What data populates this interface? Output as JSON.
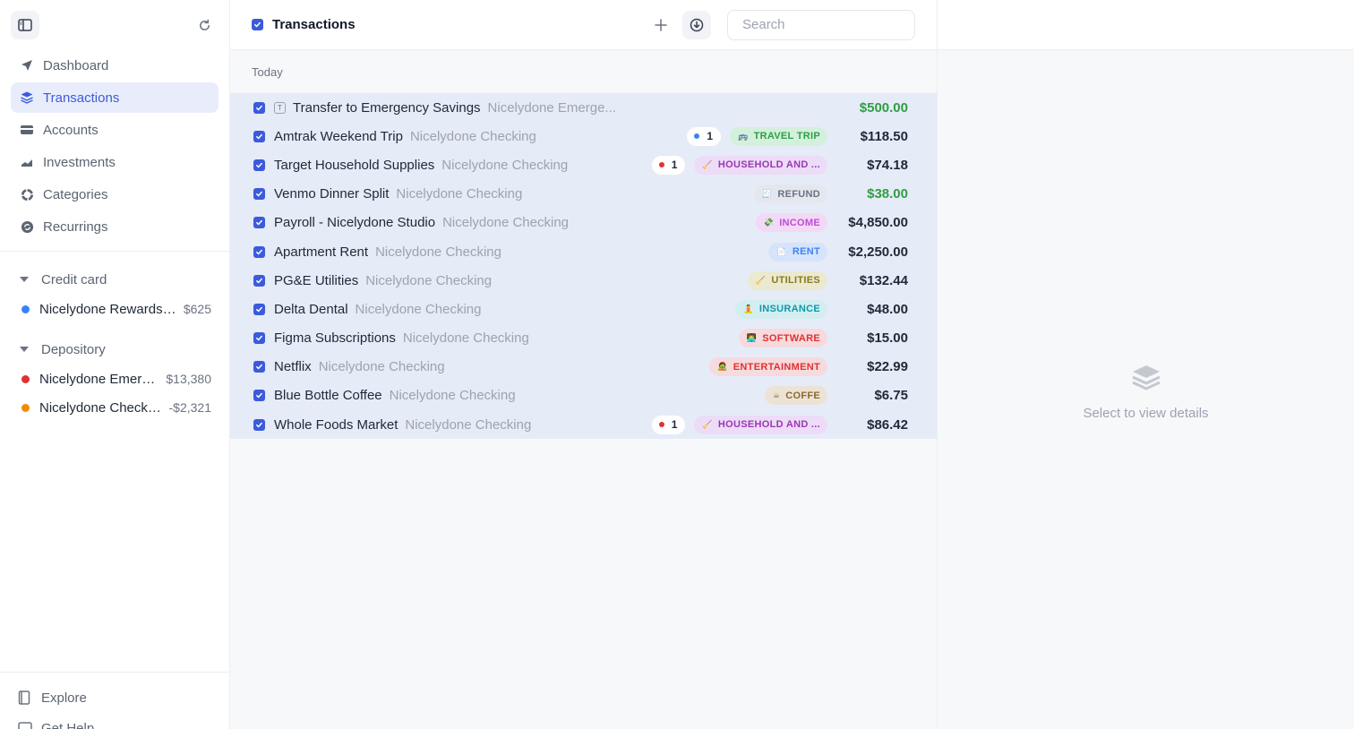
{
  "sidebar": {
    "nav": [
      {
        "label": "Dashboard",
        "icon": "send-icon",
        "active": false
      },
      {
        "label": "Transactions",
        "icon": "layers-icon",
        "active": true
      },
      {
        "label": "Accounts",
        "icon": "card-icon",
        "active": false
      },
      {
        "label": "Investments",
        "icon": "chart-icon",
        "active": false
      },
      {
        "label": "Categories",
        "icon": "pie-icon",
        "active": false
      },
      {
        "label": "Recurrings",
        "icon": "recurring-icon",
        "active": false
      }
    ],
    "groups": [
      {
        "title": "Credit card",
        "accounts": [
          {
            "name": "Nicelydone Rewards Card",
            "balance": "$625",
            "color": "#3b82f6"
          }
        ]
      },
      {
        "title": "Depository",
        "accounts": [
          {
            "name": "Nicelydone Emergency Savings",
            "balance": "$13,380",
            "color": "#e03131"
          },
          {
            "name": "Nicelydone Checking",
            "balance": "-$2,321",
            "color": "#f08c00"
          }
        ]
      }
    ],
    "bottom": [
      {
        "label": "Explore",
        "icon": "book-icon"
      },
      {
        "label": "Get Help",
        "icon": "chat-icon"
      }
    ]
  },
  "toolbar": {
    "title": "Transactions",
    "search_placeholder": "Search"
  },
  "section_label": "Today",
  "transactions": [
    {
      "desc": "Transfer to Emergency Savings",
      "account": "Nicelydone Emerge...",
      "amount": "$500.00",
      "positive": true,
      "transfer": true,
      "badge": null,
      "tag": null
    },
    {
      "desc": "Amtrak Weekend Trip",
      "account": "Nicelydone Checking",
      "amount": "$118.50",
      "positive": false,
      "badge": {
        "count": "1",
        "color": "#3b82f6"
      },
      "tag": {
        "emoji": "🚌",
        "label": "TRAVEL TRIP",
        "fg": "#2f9e44",
        "bg": "#d3f0dc"
      }
    },
    {
      "desc": "Target Household Supplies",
      "account": "Nicelydone Checking",
      "amount": "$74.18",
      "positive": false,
      "badge": {
        "count": "1",
        "color": "#e03131"
      },
      "tag": {
        "emoji": "🧹",
        "label": "HOUSEHOLD AND ...",
        "fg": "#9c36b5",
        "bg": "#ecdcf7"
      }
    },
    {
      "desc": "Venmo Dinner Split",
      "account": "Nicelydone Checking",
      "amount": "$38.00",
      "positive": true,
      "badge": null,
      "tag": {
        "emoji": "🧾",
        "label": "REFUND",
        "fg": "#6b7280",
        "bg": "#e5e7ee"
      }
    },
    {
      "desc": "Payroll - Nicelydone Studio",
      "account": "Nicelydone Checking",
      "amount": "$4,850.00",
      "positive": false,
      "badge": null,
      "tag": {
        "emoji": "💸",
        "label": "INCOME",
        "fg": "#be4bdb",
        "bg": "#f2d9f5"
      }
    },
    {
      "desc": "Apartment Rent",
      "account": "Nicelydone Checking",
      "amount": "$2,250.00",
      "positive": false,
      "badge": null,
      "tag": {
        "emoji": "📄",
        "label": "RENT",
        "fg": "#3b82f6",
        "bg": "#d6e4fb"
      }
    },
    {
      "desc": "PG&E Utilities",
      "account": "Nicelydone Checking",
      "amount": "$132.44",
      "positive": false,
      "badge": null,
      "tag": {
        "emoji": "🧹",
        "label": "UTILITIES",
        "fg": "#8a7a1e",
        "bg": "#ebe9cf"
      }
    },
    {
      "desc": "Delta Dental",
      "account": "Nicelydone Checking",
      "amount": "$48.00",
      "positive": false,
      "badge": null,
      "tag": {
        "emoji": "🧘",
        "label": "INSURANCE",
        "fg": "#1098ad",
        "bg": "#d3eef0"
      }
    },
    {
      "desc": "Figma Subscriptions",
      "account": "Nicelydone Checking",
      "amount": "$15.00",
      "positive": false,
      "badge": null,
      "tag": {
        "emoji": "👨‍💻",
        "label": "SOFTWARE",
        "fg": "#e03131",
        "bg": "#f6dadd"
      }
    },
    {
      "desc": "Netflix",
      "account": "Nicelydone Checking",
      "amount": "$22.99",
      "positive": false,
      "badge": null,
      "tag": {
        "emoji": "🧟",
        "label": "ENTERTAINMENT",
        "fg": "#e03131",
        "bg": "#f6dadd"
      }
    },
    {
      "desc": "Blue Bottle Coffee",
      "account": "Nicelydone Checking",
      "amount": "$6.75",
      "positive": false,
      "badge": null,
      "tag": {
        "emoji": "☕",
        "label": "COFFE",
        "fg": "#8a6a2e",
        "bg": "#ece3d6"
      }
    },
    {
      "desc": "Whole Foods Market",
      "account": "Nicelydone Checking",
      "amount": "$86.42",
      "positive": false,
      "badge": {
        "count": "1",
        "color": "#e03131"
      },
      "tag": {
        "emoji": "🧹",
        "label": "HOUSEHOLD AND ...",
        "fg": "#9c36b5",
        "bg": "#ecdcf7"
      }
    }
  ],
  "detail": {
    "empty_label": "Select to view details"
  }
}
